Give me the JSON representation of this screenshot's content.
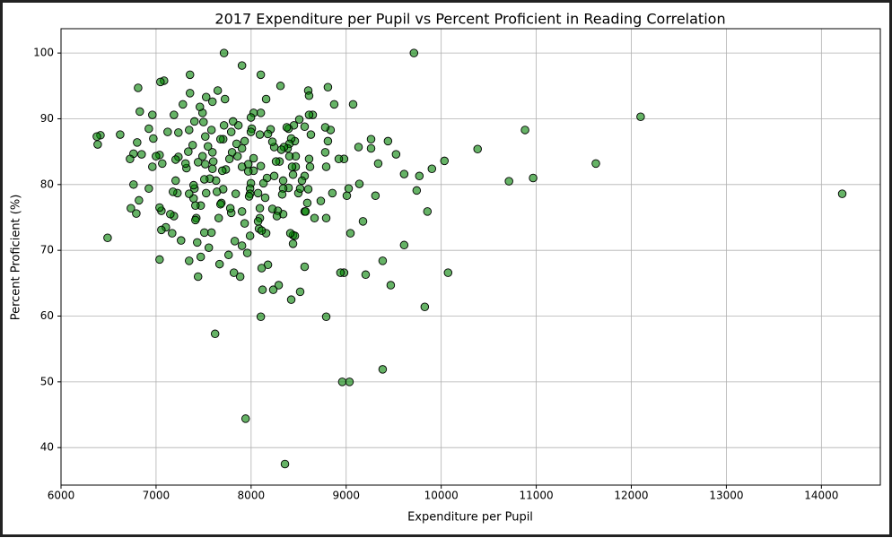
{
  "chart_data": {
    "type": "scatter",
    "title": "2017 Expenditure per Pupil vs Percent Proficient in Reading Correlation",
    "x_label": "Expenditure per Pupil",
    "y_label": "Percent Proficient (%)",
    "color": "green",
    "grid": true,
    "xlim": [
      6000,
      14620
    ],
    "ylim": [
      34.3,
      103.7
    ],
    "xticks": [
      6000,
      7000,
      8000,
      9000,
      10000,
      11000,
      12000,
      13000,
      14000
    ],
    "yticks": [
      40,
      50,
      60,
      70,
      80,
      90,
      100
    ],
    "x": [
      7715,
      9713,
      7904,
      12098,
      14219,
      11627,
      10713,
      10967,
      10882,
      10383,
      10034,
      10072,
      9827,
      9855,
      9902,
      9742,
      9770,
      9610,
      9610,
      9525,
      9440,
      9469,
      9384,
      9384,
      9337,
      9262,
      9262,
      9308,
      9205,
      9177,
      9139,
      9130,
      9073,
      9045,
      9007,
      9026,
      8978,
      8922,
      8978,
      8940,
      8959,
      9035,
      8790,
      8855,
      8874,
      8808,
      8836,
      8808,
      8790,
      8780,
      8780,
      8790,
      8733,
      8667,
      8648,
      8610,
      8610,
      8601,
      8610,
      8620,
      8629,
      8601,
      8591,
      8563,
      8563,
      8563,
      8563,
      8573,
      8535,
      8497,
      8516,
      8516,
      8507,
      8469,
      8469,
      8460,
      8450,
      8441,
      8431,
      8441,
      8460,
      8441,
      8422,
      8413,
      8422,
      8403,
      8394,
      8403,
      8394,
      8384,
      8375,
      8346,
      8337,
      8337,
      8327,
      8337,
      8318,
      8309,
      8299,
      8290,
      8281,
      8271,
      8262,
      8243,
      8243,
      8233,
      8224,
      8224,
      8205,
      8177,
      8167,
      8158,
      8148,
      8158,
      8130,
      8177,
      8120,
      8102,
      8111,
      8102,
      8102,
      8102,
      8092,
      8073,
      8092,
      8092,
      8083,
      8073,
      8111,
      8026,
      8026,
      8026,
      8007,
      7998,
      7998,
      7998,
      7989,
      7989,
      7989,
      7979,
      7970,
      7970,
      7960,
      7942,
      7932,
      7932,
      7904,
      7904,
      7904,
      7904,
      7885,
      7866,
      7857,
      7847,
      7838,
      7828,
      7819,
      7810,
      7800,
      7791,
      7791,
      7781,
      7772,
      7763,
      7734,
      7725,
      7715,
      7706,
      7706,
      7697,
      7687,
      7678,
      7678,
      7659,
      7668,
      7649,
      7640,
      7631,
      7621,
      7602,
      7593,
      7593,
      7583,
      7593,
      7583,
      7565,
      7555,
      7546,
      7527,
      7527,
      7518,
      7518,
      7508,
      7508,
      7499,
      7489,
      7489,
      7470,
      7470,
      7461,
      7442,
      7442,
      7433,
      7423,
      7414,
      7414,
      7404,
      7404,
      7395,
      7395,
      7385,
      7357,
      7357,
      7348,
      7348,
      7348,
      7339,
      7320,
      7310,
      7282,
      7263,
      7235,
      7235,
      7225,
      7206,
      7206,
      7188,
      7188,
      7178,
      7169,
      7150,
      7122,
      7084,
      7103,
      7065,
      7056,
      7056,
      7037,
      7037,
      7037,
      7046,
      6999,
      6971,
      6961,
      6961,
      6924,
      6924,
      6848,
      6829,
      6811,
      6820,
      6801,
      6792,
      6763,
      6763,
      6735,
      6726,
      6622,
      6490,
      6415,
      6386,
      6377,
      8356
    ],
    "values": [
      100,
      100,
      98.1,
      90.3,
      78.6,
      83.2,
      80.5,
      81.0,
      88.3,
      85.4,
      83.6,
      66.6,
      61.4,
      75.9,
      82.4,
      79.1,
      81.3,
      81.6,
      70.8,
      84.6,
      86.6,
      64.7,
      68.4,
      51.9,
      83.2,
      85.5,
      86.9,
      78.3,
      66.3,
      74.4,
      80.1,
      85.7,
      92.2,
      72.6,
      78.3,
      79.4,
      83.9,
      83.9,
      66.6,
      66.6,
      50.0,
      50.0,
      59.9,
      78.7,
      92.2,
      94.8,
      88.3,
      86.6,
      82.7,
      84.9,
      88.7,
      74.9,
      77.5,
      74.9,
      90.6,
      83.9,
      90.6,
      94.3,
      93.5,
      82.7,
      87.6,
      79.3,
      77.2,
      75.9,
      67.5,
      88.8,
      81.3,
      75.9,
      80.6,
      78.7,
      79.4,
      63.7,
      89.9,
      84.3,
      82.7,
      86.6,
      89.0,
      81.5,
      82.7,
      72.3,
      72.2,
      71.0,
      62.5,
      72.6,
      87.0,
      86.2,
      88.5,
      84.3,
      79.5,
      85.5,
      88.7,
      85.7,
      80.6,
      79.4,
      78.5,
      75.5,
      85.3,
      95.0,
      83.5,
      64.7,
      76.0,
      75.2,
      83.5,
      85.7,
      81.3,
      64.0,
      86.5,
      76.3,
      88.4,
      87.7,
      81.0,
      93.0,
      78.0,
      72.6,
      80.2,
      67.8,
      64.0,
      82.8,
      67.3,
      59.9,
      96.7,
      90.9,
      87.6,
      78.7,
      76.4,
      74.9,
      73.3,
      74.4,
      73.0,
      82.1,
      84.0,
      90.9,
      88.5,
      88.0,
      90.2,
      80.2,
      79.4,
      78.6,
      72.2,
      78.2,
      83.1,
      82.0,
      69.6,
      44.4,
      86.6,
      74.1,
      82.7,
      85.5,
      75.9,
      70.7,
      66.0,
      89.0,
      84.3,
      86.2,
      78.6,
      71.4,
      66.6,
      89.6,
      84.9,
      88.0,
      75.7,
      76.4,
      83.9,
      69.3,
      82.3,
      93.0,
      89.0,
      86.9,
      79.3,
      82.1,
      77.2,
      86.9,
      77.0,
      74.9,
      67.9,
      94.3,
      78.9,
      80.6,
      57.3,
      83.5,
      82.4,
      84.9,
      88.3,
      92.6,
      72.7,
      80.9,
      70.4,
      85.8,
      78.7,
      93.3,
      83.1,
      87.3,
      72.7,
      80.8,
      89.5,
      90.9,
      84.3,
      76.8,
      69.0,
      91.8,
      83.4,
      66.0,
      71.2,
      74.9,
      74.6,
      76.8,
      89.6,
      79.4,
      77.9,
      79.9,
      86.0,
      96.7,
      93.9,
      78.6,
      68.4,
      88.3,
      85.0,
      82.5,
      83.2,
      92.2,
      71.5,
      87.9,
      84.2,
      78.7,
      80.6,
      83.8,
      90.6,
      75.2,
      78.9,
      72.6,
      75.5,
      88.0,
      95.8,
      73.5,
      83.2,
      76.0,
      73.1,
      76.5,
      84.5,
      68.6,
      95.6,
      84.3,
      87.0,
      90.6,
      82.7,
      88.5,
      79.4,
      84.6,
      91.1,
      94.7,
      77.6,
      86.4,
      75.6,
      84.7,
      80.0,
      76.4,
      83.9,
      87.6,
      71.9,
      87.5,
      86.1,
      87.3,
      37.5
    ]
  }
}
